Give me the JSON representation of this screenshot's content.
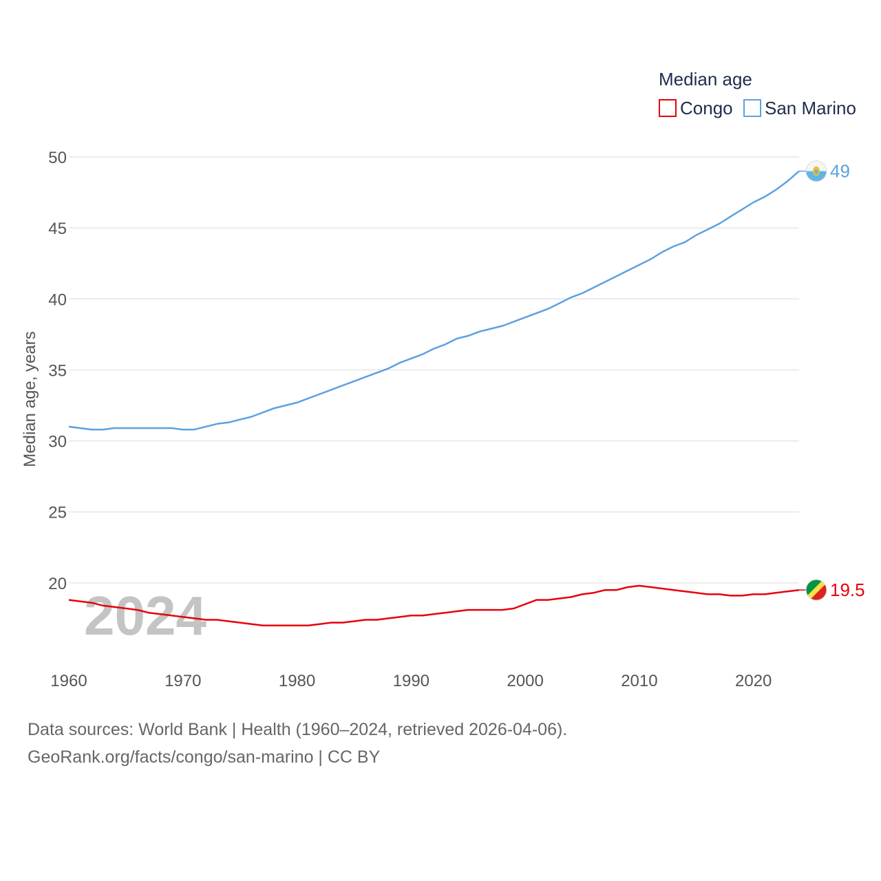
{
  "chart_data": {
    "type": "line",
    "title": "",
    "xlabel": "",
    "ylabel": "Median age, years",
    "xlim": [
      1960,
      2024
    ],
    "ylim": [
      15,
      50
    ],
    "yticks": [
      20,
      25,
      30,
      35,
      40,
      45,
      50
    ],
    "xticks": [
      1960,
      1970,
      1980,
      1990,
      2000,
      2010,
      2020
    ],
    "grid": true,
    "legend_title": "Median age",
    "legend_position": "top-right",
    "current_year_label": "2024",
    "x": [
      1960,
      1961,
      1962,
      1963,
      1964,
      1965,
      1966,
      1967,
      1968,
      1969,
      1970,
      1971,
      1972,
      1973,
      1974,
      1975,
      1976,
      1977,
      1978,
      1979,
      1980,
      1981,
      1982,
      1983,
      1984,
      1985,
      1986,
      1987,
      1988,
      1989,
      1990,
      1991,
      1992,
      1993,
      1994,
      1995,
      1996,
      1997,
      1998,
      1999,
      2000,
      2001,
      2002,
      2003,
      2004,
      2005,
      2006,
      2007,
      2008,
      2009,
      2010,
      2011,
      2012,
      2013,
      2014,
      2015,
      2016,
      2017,
      2018,
      2019,
      2020,
      2021,
      2022,
      2023,
      2024
    ],
    "series": [
      {
        "name": "Congo",
        "color": "#e8000b",
        "end_label": "19.5",
        "flag": "congo-flag",
        "values": [
          18.8,
          18.7,
          18.6,
          18.4,
          18.3,
          18.2,
          18.1,
          17.9,
          17.8,
          17.7,
          17.6,
          17.5,
          17.4,
          17.4,
          17.3,
          17.2,
          17.1,
          17.0,
          17.0,
          17.0,
          17.0,
          17.0,
          17.1,
          17.2,
          17.2,
          17.3,
          17.4,
          17.4,
          17.5,
          17.6,
          17.7,
          17.7,
          17.8,
          17.9,
          18.0,
          18.1,
          18.1,
          18.1,
          18.1,
          18.2,
          18.5,
          18.8,
          18.8,
          18.9,
          19.0,
          19.2,
          19.3,
          19.5,
          19.5,
          19.7,
          19.8,
          19.7,
          19.6,
          19.5,
          19.4,
          19.3,
          19.2,
          19.2,
          19.1,
          19.1,
          19.2,
          19.2,
          19.3,
          19.4,
          19.5
        ]
      },
      {
        "name": "San Marino",
        "color": "#5ba1e0",
        "end_label": "49",
        "flag": "san-marino-flag",
        "values": [
          31.0,
          30.9,
          30.8,
          30.8,
          30.9,
          30.9,
          30.9,
          30.9,
          30.9,
          30.9,
          30.8,
          30.8,
          31.0,
          31.2,
          31.3,
          31.5,
          31.7,
          32.0,
          32.3,
          32.5,
          32.7,
          33.0,
          33.3,
          33.6,
          33.9,
          34.2,
          34.5,
          34.8,
          35.1,
          35.5,
          35.8,
          36.1,
          36.5,
          36.8,
          37.2,
          37.4,
          37.7,
          37.9,
          38.1,
          38.4,
          38.7,
          39.0,
          39.3,
          39.7,
          40.1,
          40.4,
          40.8,
          41.2,
          41.6,
          42.0,
          42.4,
          42.8,
          43.3,
          43.7,
          44.0,
          44.5,
          44.9,
          45.3,
          45.8,
          46.3,
          46.8,
          47.2,
          47.7,
          48.3,
          49.0
        ]
      }
    ]
  },
  "source": {
    "line1": "Data sources: World Bank | Health (1960–2024, retrieved 2026-04-06).",
    "line2": "GeoRank.org/facts/congo/san-marino | CC BY"
  }
}
